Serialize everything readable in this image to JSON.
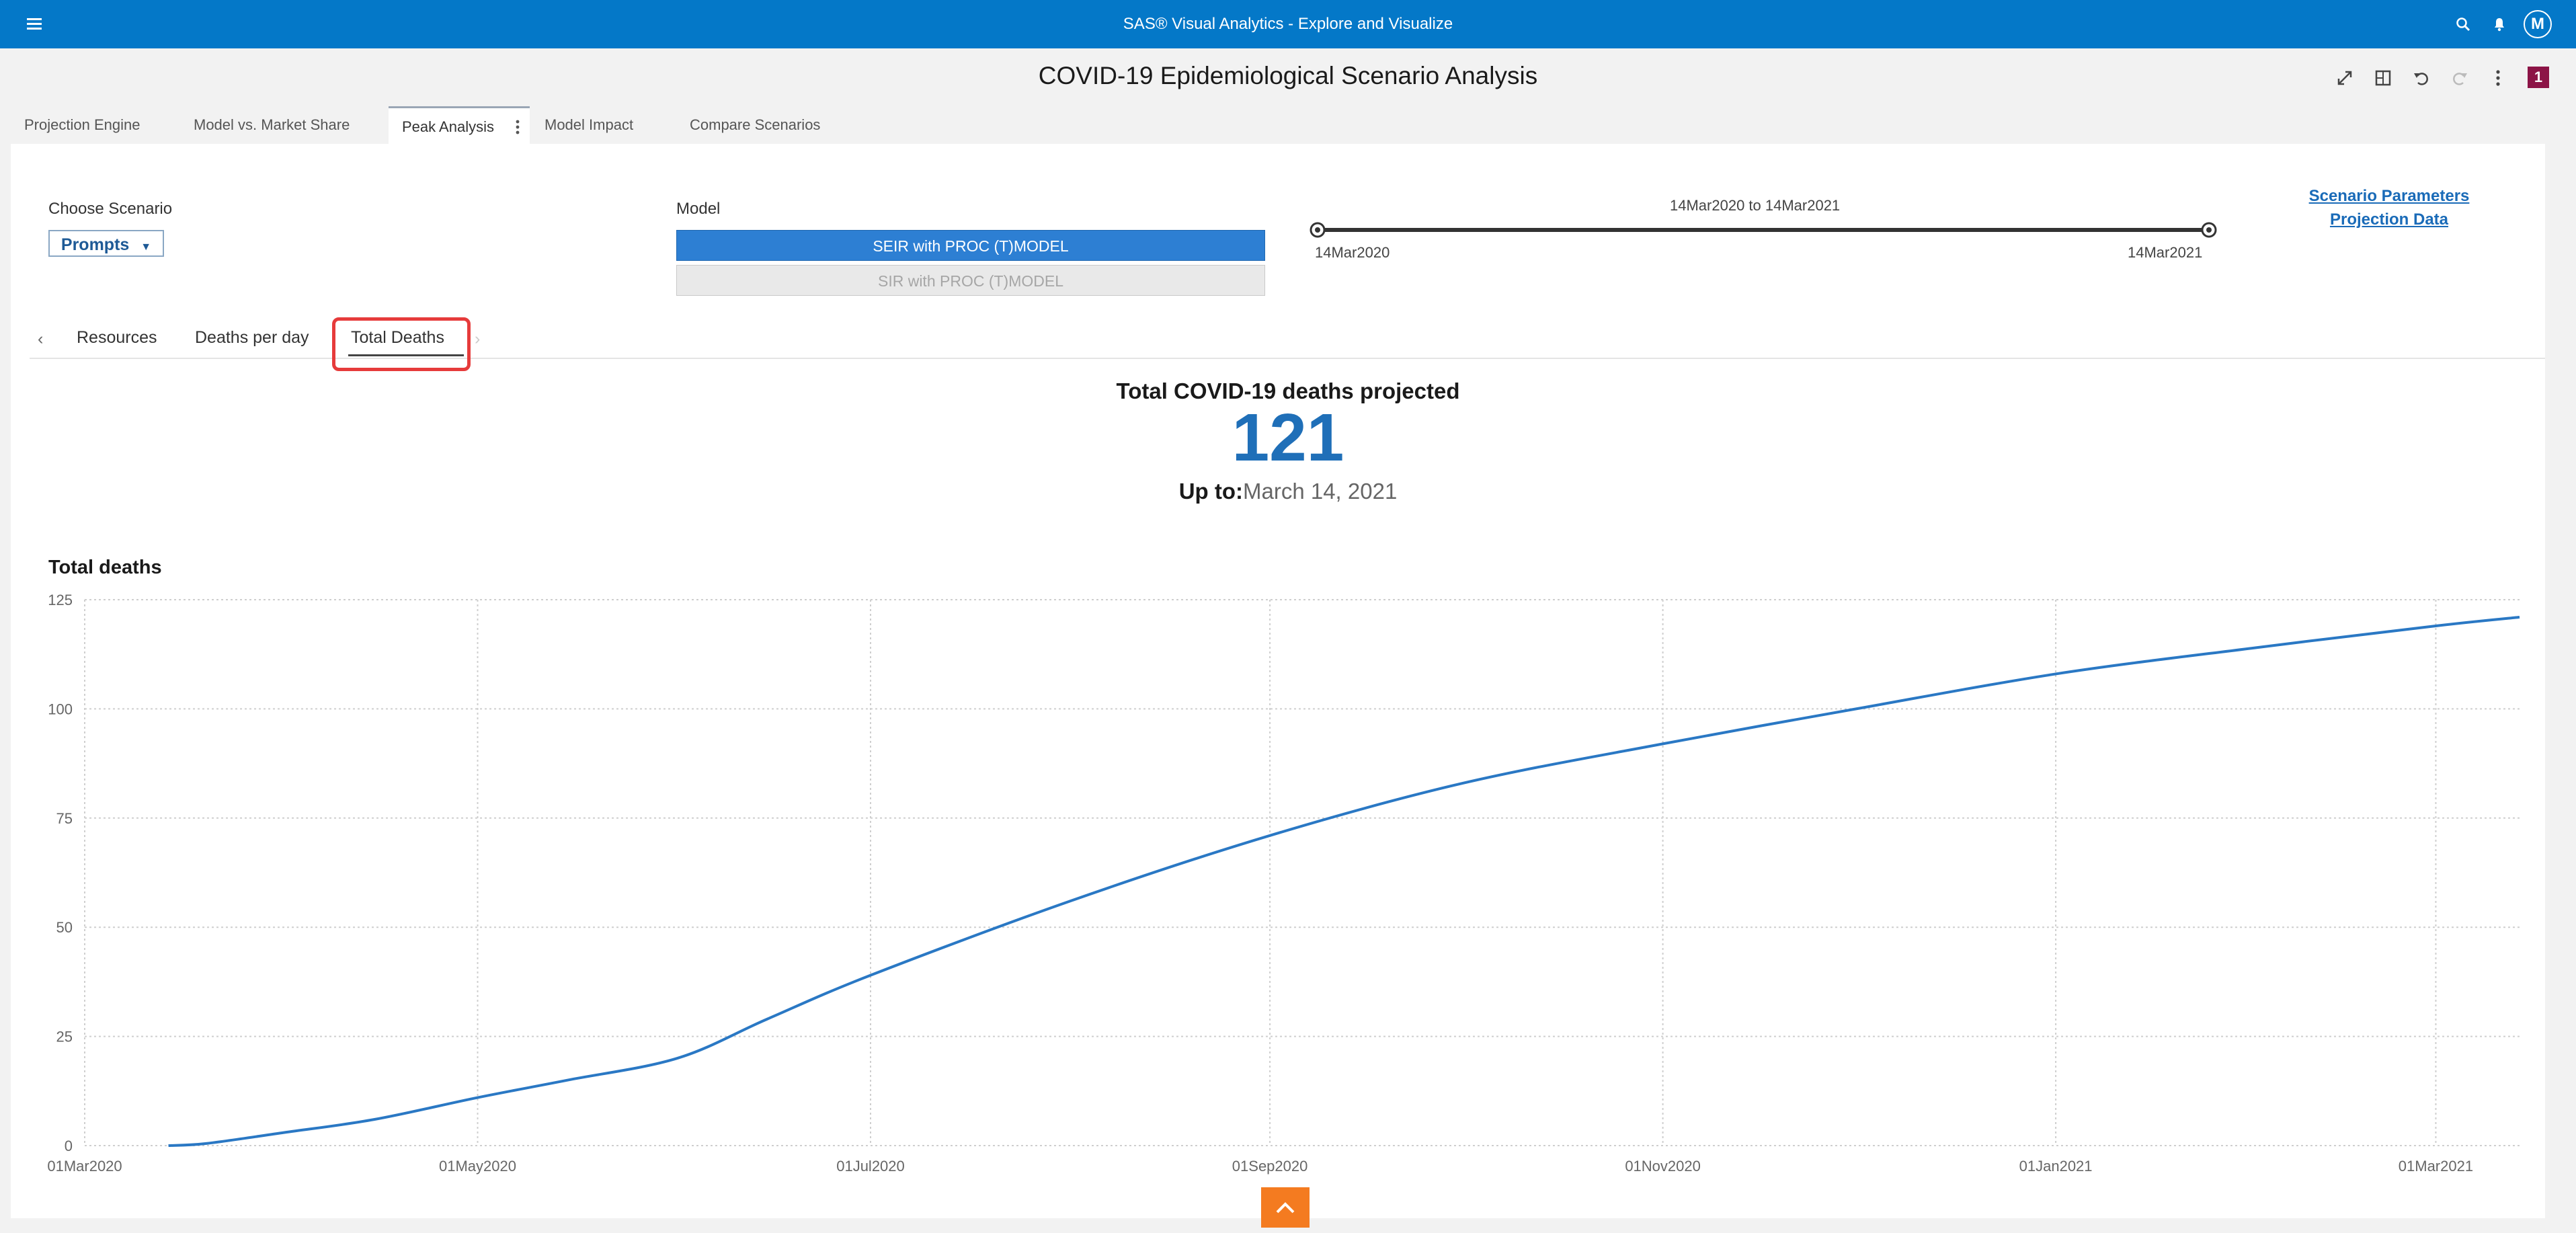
{
  "app": {
    "title": "SAS® Visual Analytics - Explore and Visualize",
    "avatar_initial": "M"
  },
  "report": {
    "title": "COVID-19 Epidemiological Scenario Analysis",
    "badge": "1"
  },
  "page_tabs": [
    {
      "label": "Projection Engine"
    },
    {
      "label": "Model vs. Market Share"
    },
    {
      "label": "Peak Analysis"
    },
    {
      "label": "Model Impact"
    },
    {
      "label": "Compare Scenarios"
    }
  ],
  "controls": {
    "choose_scenario_label": "Choose Scenario",
    "prompts_label": "Prompts",
    "model_label": "Model",
    "model_options": [
      "SEIR with PROC (T)MODEL",
      "SIR with PROC (T)MODEL"
    ],
    "model_selected": "SEIR with PROC (T)MODEL",
    "date_range_label": "14Mar2020 to 14Mar2021",
    "slider_start": "14Mar2020",
    "slider_end": "14Mar2021",
    "links": [
      "Scenario Parameters",
      "Projection Data"
    ]
  },
  "inner_tabs": [
    {
      "label": "Resources"
    },
    {
      "label": "Deaths per day"
    },
    {
      "label": "Total Deaths"
    }
  ],
  "inner_tab_selected": "Total Deaths",
  "kpi": {
    "title": "Total COVID-19 deaths projected",
    "value": "121",
    "upto_label": "Up to:",
    "upto_value": "March 14, 2021"
  },
  "chart_data": {
    "type": "line",
    "title": "Total deaths",
    "xlabel": "",
    "ylabel": "",
    "x_tick_labels": [
      "01Mar2020",
      "01May2020",
      "01Jul2020",
      "01Sep2020",
      "01Nov2020",
      "01Jan2021",
      "01Mar2021"
    ],
    "y_ticks": [
      0,
      25,
      50,
      75,
      100,
      125
    ],
    "ylim": [
      0,
      125
    ],
    "xlim": [
      "01Mar2020",
      "14Mar2021"
    ],
    "grid": true,
    "series": [
      {
        "color": "#2a78c4",
        "points": [
          [
            "14Mar2020",
            0
          ],
          [
            "20Mar2020",
            0.5
          ],
          [
            "01Apr2020",
            3
          ],
          [
            "15Apr2020",
            6
          ],
          [
            "01May2020",
            11
          ],
          [
            "15May2020",
            15
          ],
          [
            "01Jun2020",
            20
          ],
          [
            "15Jun2020",
            29
          ],
          [
            "01Jul2020",
            39
          ],
          [
            "01Aug2020",
            56
          ],
          [
            "01Sep2020",
            71
          ],
          [
            "01Oct2020",
            83
          ],
          [
            "01Nov2020",
            92
          ],
          [
            "01Dec2020",
            100
          ],
          [
            "01Jan2021",
            108
          ],
          [
            "01Feb2021",
            114
          ],
          [
            "01Mar2021",
            119
          ],
          [
            "14Mar2021",
            121
          ]
        ]
      }
    ]
  }
}
